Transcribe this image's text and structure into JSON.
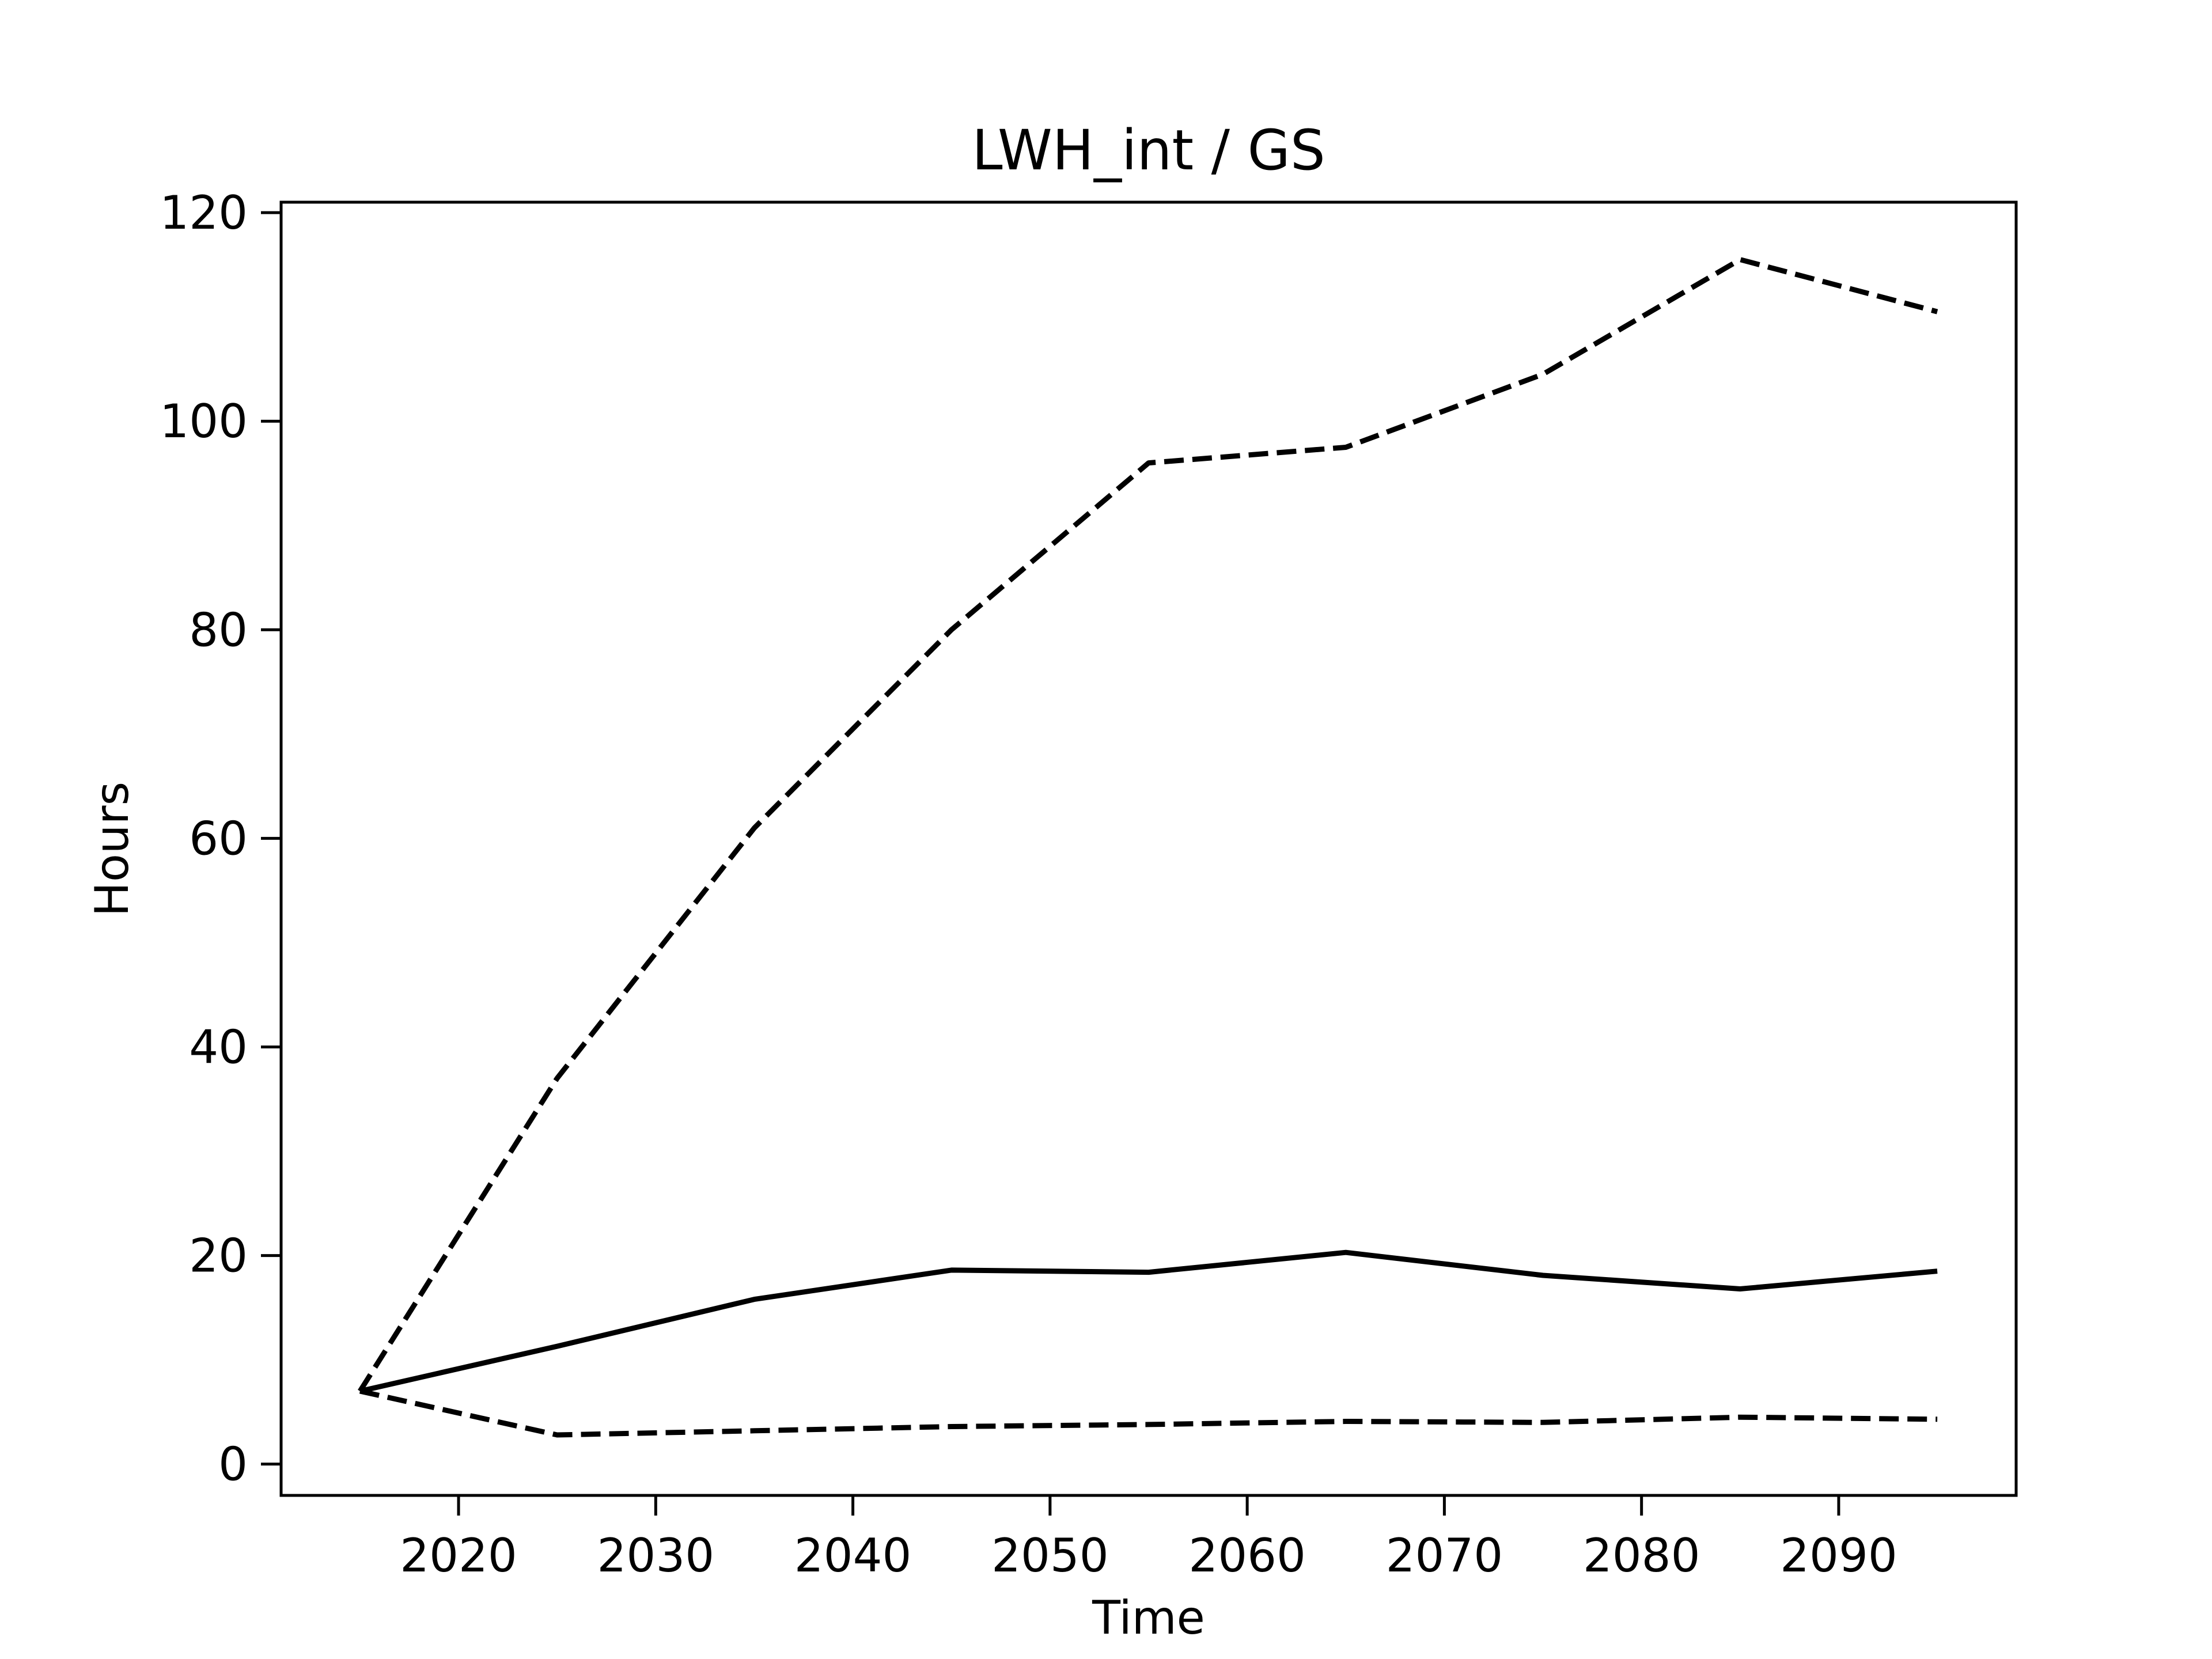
{
  "chart_data": {
    "type": "line",
    "title": "LWH_int / GS",
    "xlabel": "Time",
    "ylabel": "Hours",
    "xlim": [
      2011,
      2099
    ],
    "ylim": [
      -3,
      121
    ],
    "xticks": [
      2020,
      2030,
      2040,
      2050,
      2060,
      2070,
      2080,
      2090
    ],
    "yticks": [
      0,
      20,
      40,
      60,
      80,
      100,
      120
    ],
    "grid": false,
    "legend": "none",
    "x": [
      2015,
      2025,
      2035,
      2045,
      2055,
      2065,
      2075,
      2085,
      2095
    ],
    "series": [
      {
        "style": "dashed",
        "color": "#000000",
        "values": [
          7.0,
          37.0,
          61.0,
          80.0,
          96.0,
          97.5,
          104.5,
          115.5,
          110.5
        ]
      },
      {
        "style": "solid",
        "color": "#000000",
        "values": [
          7.0,
          11.3,
          15.8,
          18.6,
          18.4,
          20.3,
          18.1,
          16.8,
          18.5
        ]
      },
      {
        "style": "dashed",
        "color": "#000000",
        "values": [
          7.0,
          2.8,
          3.2,
          3.6,
          3.8,
          4.1,
          4.0,
          4.5,
          4.3
        ]
      }
    ]
  }
}
